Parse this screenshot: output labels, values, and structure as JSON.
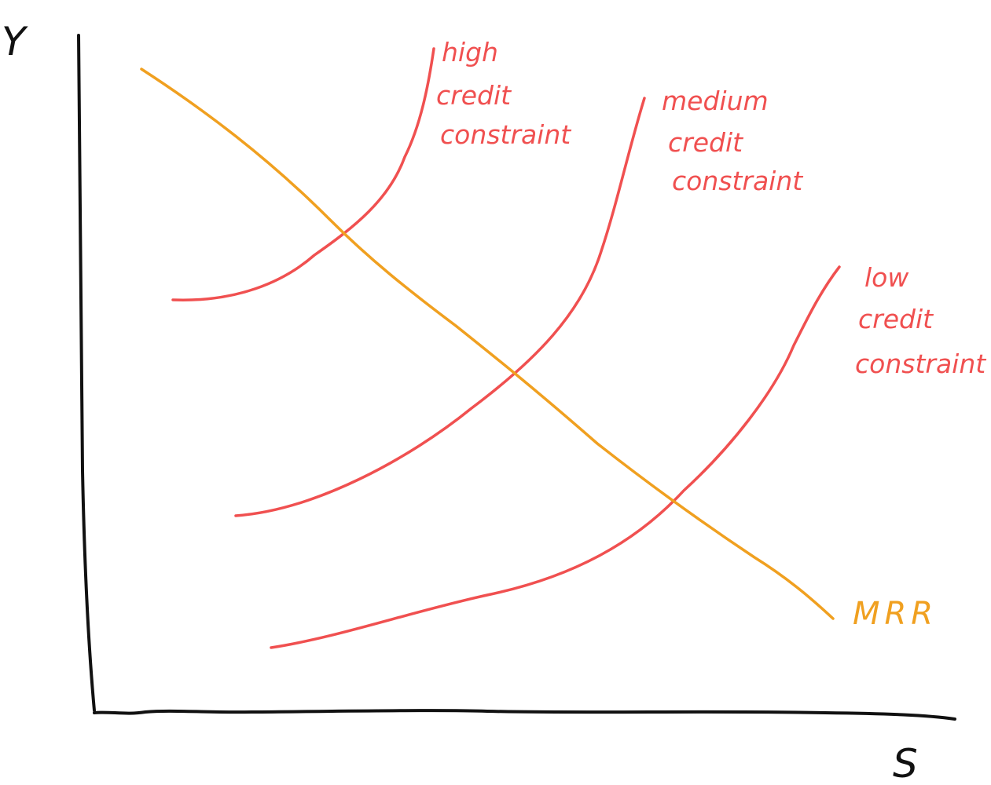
{
  "axes": {
    "y_label": "Y",
    "x_label": "S"
  },
  "colors": {
    "axis": "#111111",
    "constraint_curve": "#f05050",
    "mrr_line": "#f0a020"
  },
  "curves": {
    "high": {
      "label_lines": [
        "high",
        "credit",
        "constraint"
      ]
    },
    "medium": {
      "label_lines": [
        "medium",
        "credit",
        "constraint"
      ]
    },
    "low": {
      "label_lines": [
        "low",
        "credit",
        "constraint"
      ]
    }
  },
  "mrr": {
    "label": "MRR"
  }
}
